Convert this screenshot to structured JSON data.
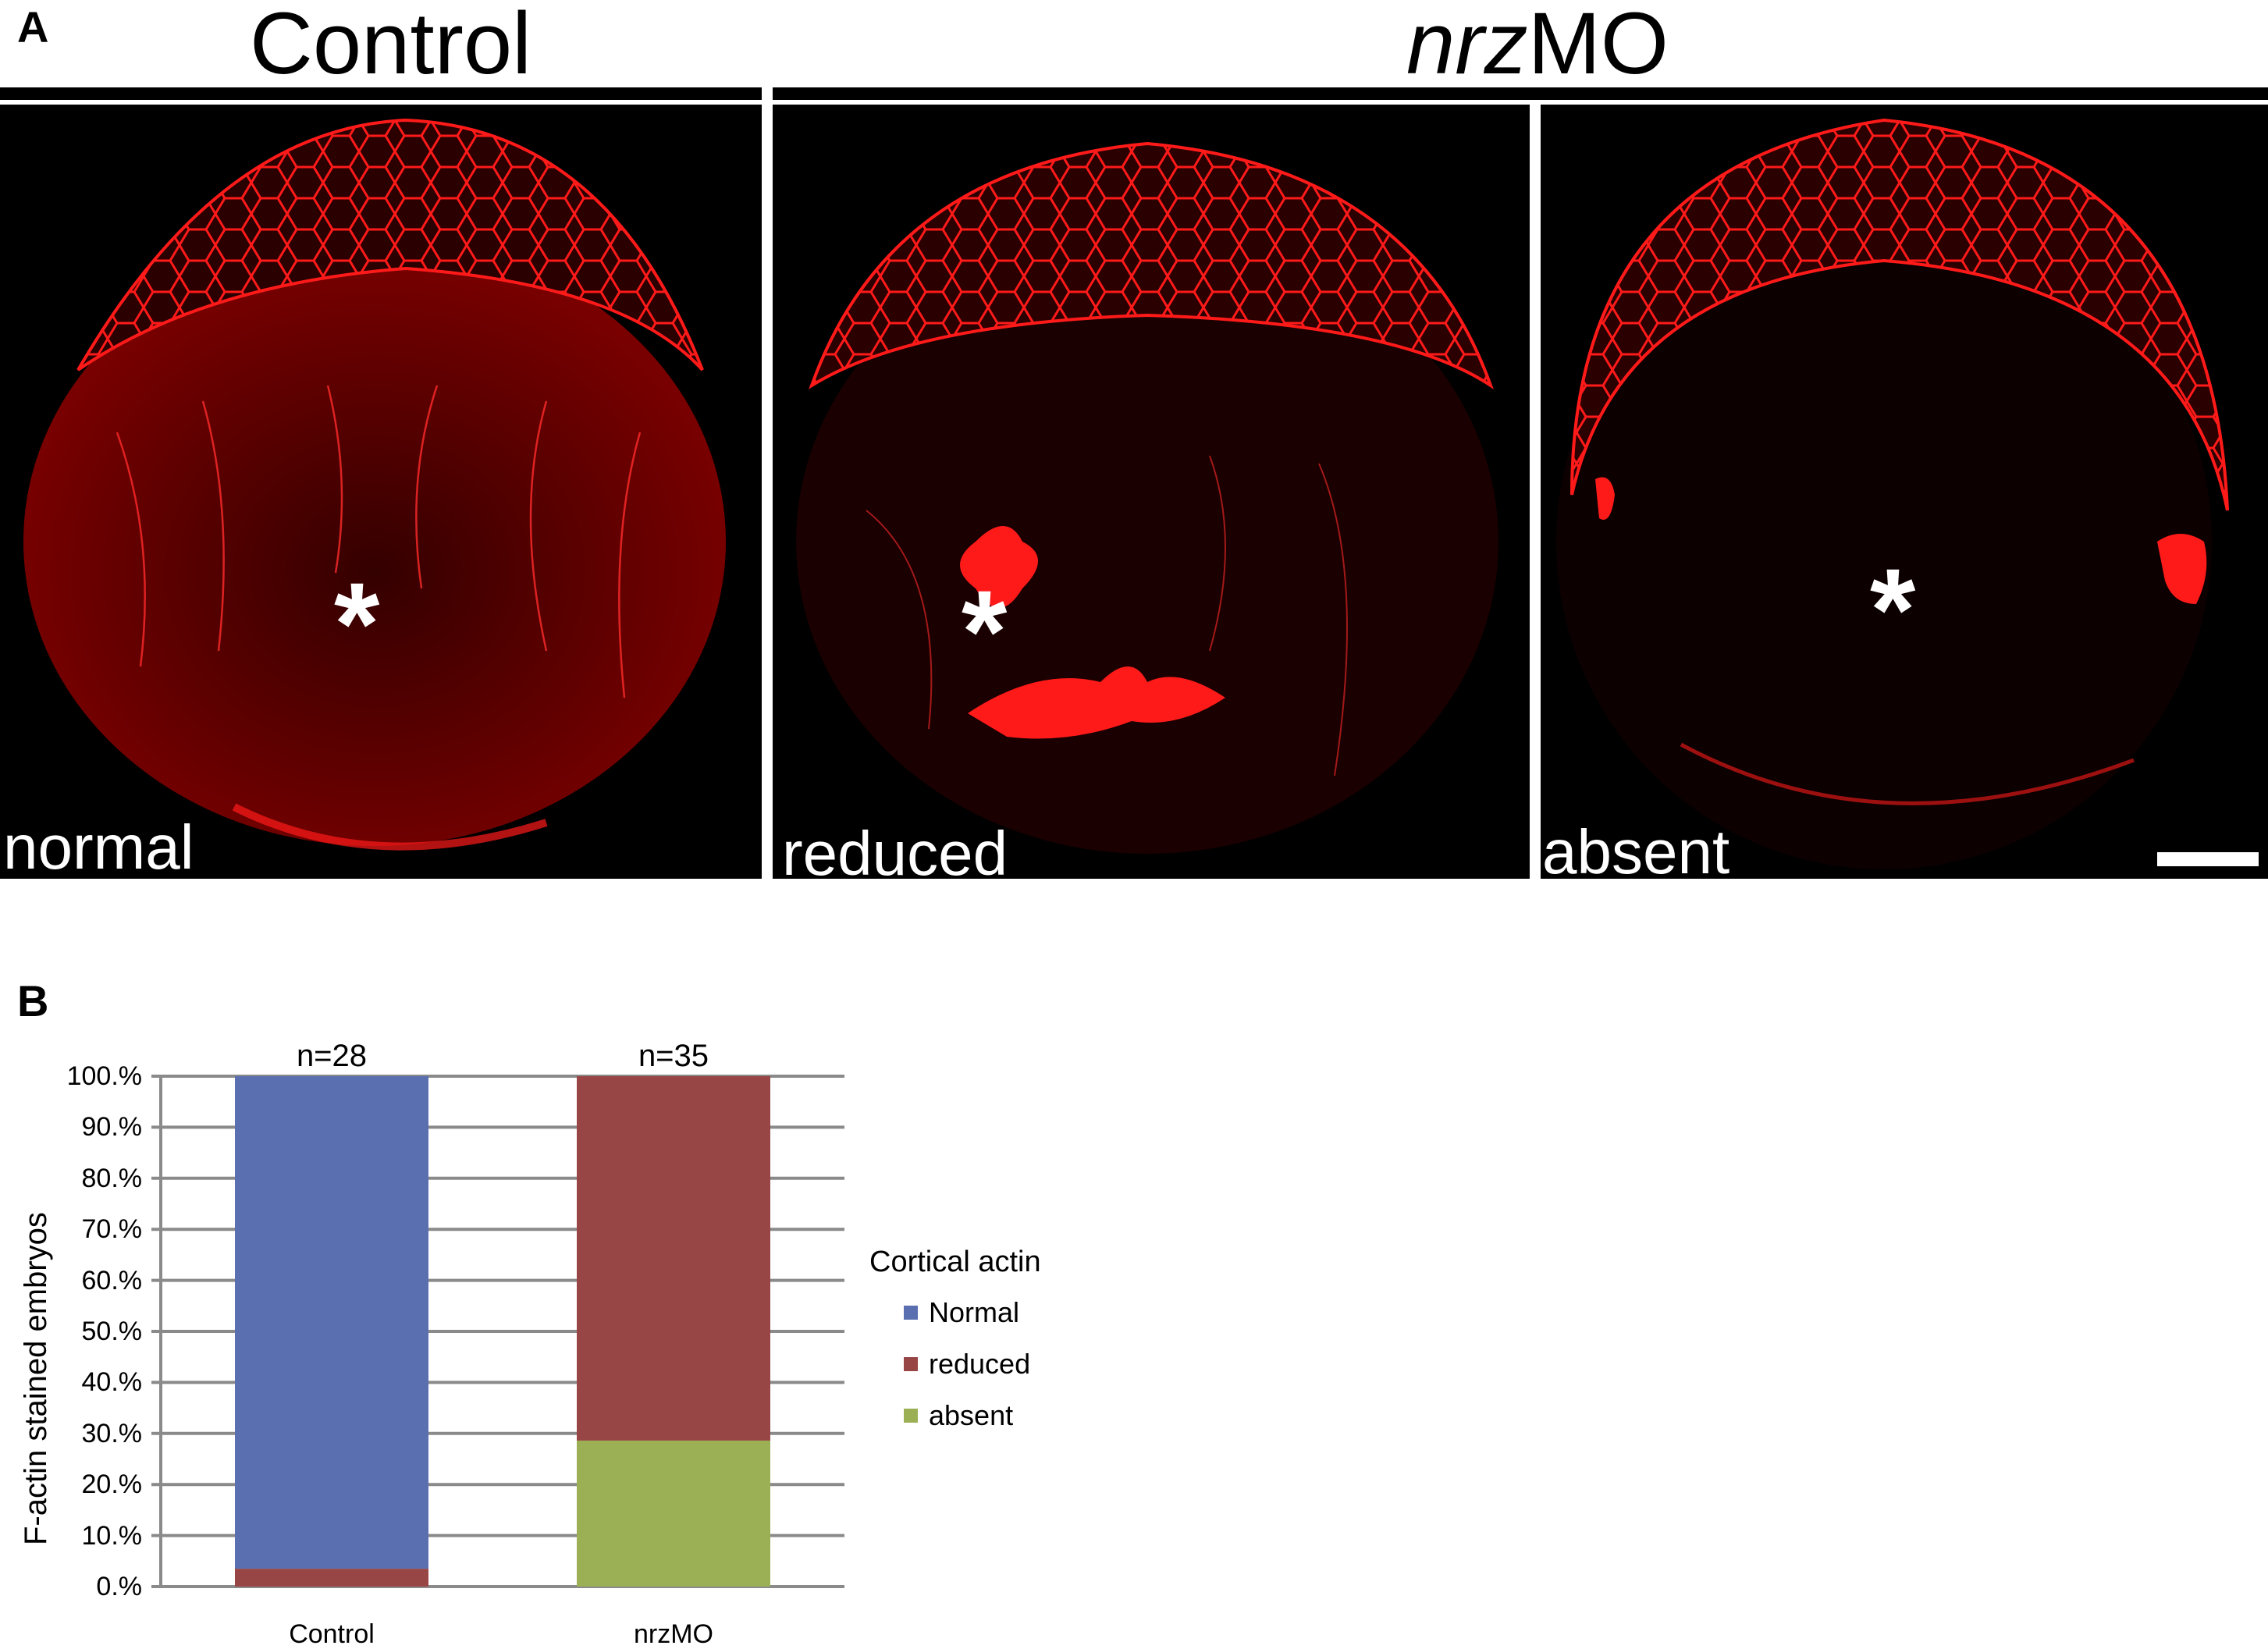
{
  "figure": {
    "panel_a_letter": "A",
    "panel_b_letter": "B",
    "group_control": "Control",
    "group_nrz_italic": "nrz",
    "group_nrz_rest": "MO",
    "micrographs": [
      {
        "label": "normal",
        "asterisk": "*"
      },
      {
        "label": "reduced",
        "asterisk": "*"
      },
      {
        "label": "absent",
        "asterisk": "*"
      }
    ]
  },
  "colors": {
    "normal": "#5A6FAF",
    "reduced": "#984645",
    "absent": "#9BB054",
    "stain": "#ff1a1a"
  },
  "chart_data": {
    "type": "bar",
    "stacked": true,
    "categories": [
      "Control",
      "nrzMO"
    ],
    "n_labels": [
      "n=28",
      "n=35"
    ],
    "ylabel": "F-actin stained embryos",
    "ylim": [
      0,
      100
    ],
    "yticks": [
      "0.%",
      "10.%",
      "20.%",
      "30.%",
      "40.%",
      "50.%",
      "60.%",
      "70.%",
      "80.%",
      "90.%",
      "100.%"
    ],
    "legend_title": "Cortical actin",
    "legend_position": "right",
    "grid": true,
    "series": [
      {
        "name": "Normal",
        "color": "#5A6FAF",
        "values": [
          96.5,
          0
        ]
      },
      {
        "name": "reduced",
        "color": "#984645",
        "values": [
          3.5,
          71.4
        ]
      },
      {
        "name": "absent",
        "color": "#9BB054",
        "values": [
          0,
          28.6
        ]
      }
    ]
  }
}
